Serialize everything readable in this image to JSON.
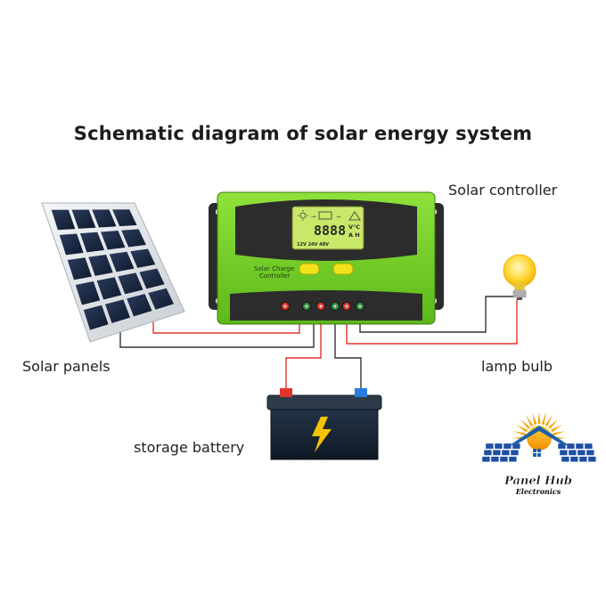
{
  "title": "Schematic diagram of solar energy system",
  "labels": {
    "controller": "Solar controller",
    "panels": "Solar panels",
    "lamp": "lamp bulb",
    "battery": "storage battery"
  },
  "controller_device": {
    "brand_line1": "Solar Charge",
    "brand_line2": "Controller",
    "lcd_digits": "8888",
    "lcd_unit_top": "V°C",
    "lcd_unit_bottom": "A H",
    "lcd_voltages": "12V 24V 48V",
    "body_color": "#7ed321",
    "lcd_color": "#c9e86a"
  },
  "logo": {
    "line1": "Panel Hub",
    "line2": "Electronics"
  },
  "wire_colors": {
    "positive": "#e0342a",
    "negative": "#333333"
  }
}
